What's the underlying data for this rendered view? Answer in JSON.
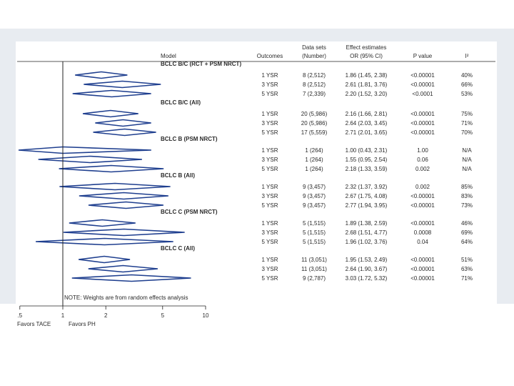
{
  "chart_data": {
    "type": "forest",
    "x_scale": "log",
    "xlim": [
      0.5,
      10
    ],
    "x_ticks": [
      ".5",
      "1",
      "2",
      "5",
      "10"
    ],
    "x_tick_values": [
      0.5,
      1,
      2,
      5,
      10
    ],
    "reference_line": 1,
    "favors_left": "Favors TACE",
    "favors_right": "Favors PH",
    "note": "NOTE: Weights are from random effects analysis",
    "headers": {
      "model": "Model",
      "outcomes": "Outcomes",
      "datasets": [
        "Data sets",
        "(Number)"
      ],
      "effect": [
        "Effect estimates",
        "OR (95% CI)"
      ],
      "pvalue": "P value",
      "i2": "I²"
    },
    "groups": [
      {
        "name": "BCLC B/C (RCT + PSM NRCT)",
        "rows": [
          {
            "outcome": "1 YSR",
            "datasets": "8 (2,512)",
            "effect": "1.86 (1.45, 2.38)",
            "p": "<0.00001",
            "i2": "40%",
            "or": 1.86,
            "lo": 1.45,
            "hi": 2.38
          },
          {
            "outcome": "3 YSR",
            "datasets": "8 (2,512)",
            "effect": "2.61 (1.81, 3.76)",
            "p": "<0.00001",
            "i2": "66%",
            "or": 2.61,
            "lo": 1.81,
            "hi": 3.76
          },
          {
            "outcome": "5 YSR",
            "datasets": "7 (2,339)",
            "effect": "2.20 (1.52, 3.20)",
            "p": "<0.0001",
            "i2": "53%",
            "or": 2.2,
            "lo": 1.52,
            "hi": 3.2
          }
        ]
      },
      {
        "name": "BCLC B/C (All)",
        "rows": [
          {
            "outcome": "1 YSR",
            "datasets": "20 (5,986)",
            "effect": "2.16 (1.66, 2.81)",
            "p": "<0.00001",
            "i2": "75%",
            "or": 2.16,
            "lo": 1.66,
            "hi": 2.81
          },
          {
            "outcome": "3 YSR",
            "datasets": "20 (5,986)",
            "effect": "2.64 (2.03, 3.45)",
            "p": "<0.00001",
            "i2": "71%",
            "or": 2.64,
            "lo": 2.03,
            "hi": 3.45
          },
          {
            "outcome": "5 YSR",
            "datasets": "17 (5,559)",
            "effect": "2.71 (2.01, 3.65)",
            "p": "<0.00001",
            "i2": "70%",
            "or": 2.71,
            "lo": 2.01,
            "hi": 3.65
          }
        ]
      },
      {
        "name": "BCLC B (PSM NRCT)",
        "rows": [
          {
            "outcome": "1 YSR",
            "datasets": "1 (264)",
            "effect": "1.00 (0.43, 2.31)",
            "p": "1.00",
            "i2": "N/A",
            "or": 1.0,
            "lo": 0.43,
            "hi": 2.31
          },
          {
            "outcome": "3 YSR",
            "datasets": "1 (264)",
            "effect": "1.55 (0.95, 2.54)",
            "p": "0.06",
            "i2": "N/A",
            "or": 1.55,
            "lo": 0.95,
            "hi": 2.54
          },
          {
            "outcome": "5 YSR",
            "datasets": "1 (264)",
            "effect": "2.18 (1.33, 3.59)",
            "p": "0.002",
            "i2": "N/A",
            "or": 2.18,
            "lo": 1.33,
            "hi": 3.59
          }
        ]
      },
      {
        "name": "BCLC B (All)",
        "rows": [
          {
            "outcome": "1 YSR",
            "datasets": "9 (3,457)",
            "effect": "2.32 (1.37, 3.92)",
            "p": "0.002",
            "i2": "85%",
            "or": 2.32,
            "lo": 1.37,
            "hi": 3.92
          },
          {
            "outcome": "3 YSR",
            "datasets": "9 (3,457)",
            "effect": "2.67 (1.75, 4.08)",
            "p": "<0.00001",
            "i2": "83%",
            "or": 2.67,
            "lo": 1.75,
            "hi": 4.08
          },
          {
            "outcome": "5 YSR",
            "datasets": "9 (3,457)",
            "effect": "2.77 (1.94, 3.95)",
            "p": "<0.00001",
            "i2": "73%",
            "or": 2.77,
            "lo": 1.94,
            "hi": 3.95
          }
        ]
      },
      {
        "name": "BCLC C (PSM NRCT)",
        "rows": [
          {
            "outcome": "1 YSR",
            "datasets": "5 (1,515)",
            "effect": "1.89 (1.38, 2.59)",
            "p": "<0.00001",
            "i2": "46%",
            "or": 1.89,
            "lo": 1.38,
            "hi": 2.59
          },
          {
            "outcome": "3 YSR",
            "datasets": "5 (1,515)",
            "effect": "2.68 (1.51, 4.77)",
            "p": "0.0008",
            "i2": "69%",
            "or": 2.68,
            "lo": 1.51,
            "hi": 4.77
          },
          {
            "outcome": "5 YSR",
            "datasets": "5 (1,515)",
            "effect": "1.96 (1.02, 3.76)",
            "p": "0.04",
            "i2": "64%",
            "or": 1.96,
            "lo": 1.02,
            "hi": 3.76
          }
        ]
      },
      {
        "name": "BCLC C (All)",
        "rows": [
          {
            "outcome": "1 YSR",
            "datasets": "11 (3,051)",
            "effect": "1.95 (1.53, 2.49)",
            "p": "<0.00001",
            "i2": "51%",
            "or": 1.95,
            "lo": 1.53,
            "hi": 2.49
          },
          {
            "outcome": "3 YSR",
            "datasets": "11 (3,051)",
            "effect": "2.64 (1.90, 3.67)",
            "p": "<0.00001",
            "i2": "63%",
            "or": 2.64,
            "lo": 1.9,
            "hi": 3.67
          },
          {
            "outcome": "5 YSR",
            "datasets": "9 (2,787)",
            "effect": "3.03 (1.72, 5.32)",
            "p": "<0.00001",
            "i2": "71%",
            "or": 3.03,
            "lo": 1.72,
            "hi": 5.32
          }
        ]
      }
    ],
    "colors": {
      "diamond": "#1f3f8f",
      "text": "#2a2a2a",
      "axis": "#222222"
    }
  }
}
